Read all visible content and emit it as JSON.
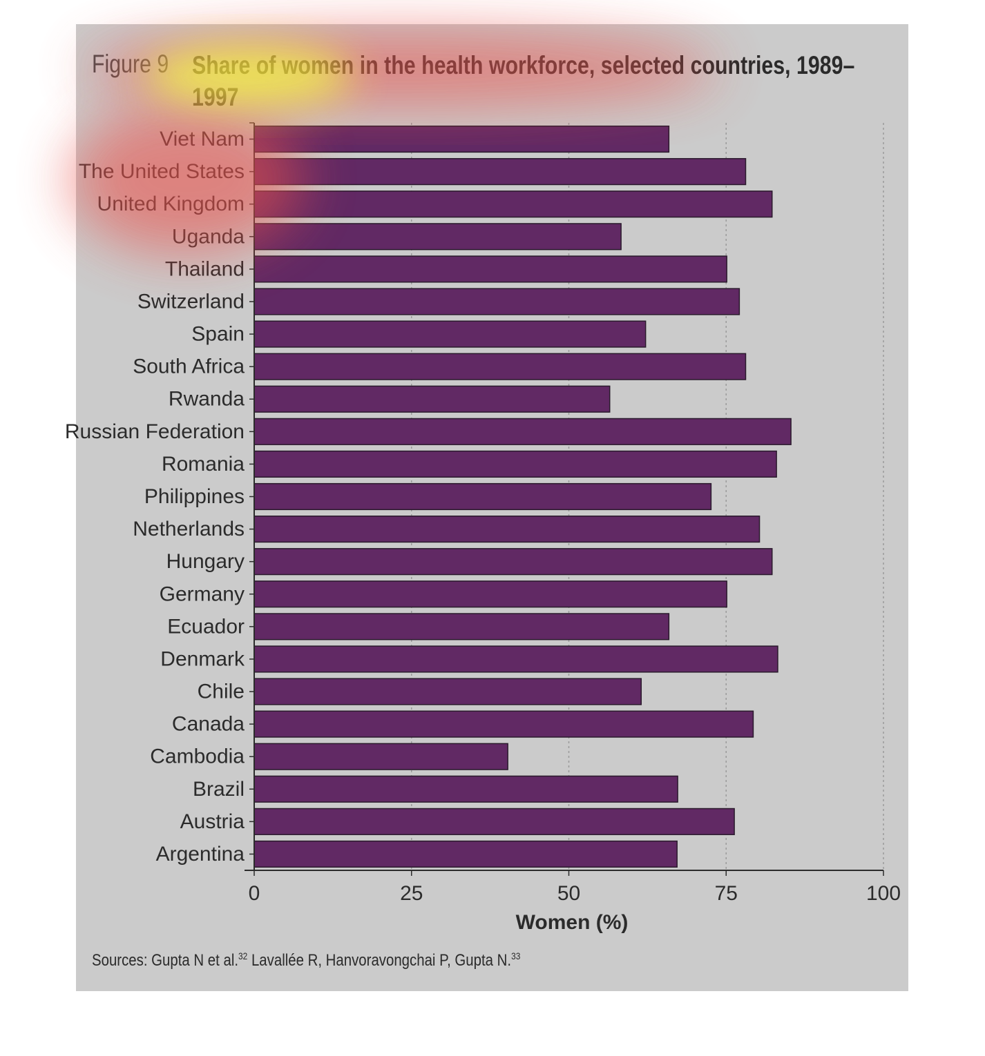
{
  "figure": {
    "label": "Figure 9",
    "title": "Share of women in the health workforce, selected countries, 1989–1997"
  },
  "sources": {
    "prefix": "Sources: Gupta N et al.",
    "ref1": "32",
    "middle": " Lavallée R, Hanvoravongchai P, Gupta N.",
    "ref2": "33"
  },
  "colors": {
    "bar": "#612964",
    "bar_edge": "#2a1a2c",
    "panel": "#cbcbcb",
    "grid": "#9a9a9a"
  },
  "chart_data": {
    "type": "bar",
    "orientation": "horizontal",
    "title": "Share of women in the health workforce, selected countries, 1989–1997",
    "xlabel": "Women (%)",
    "ylabel": "",
    "xlim": [
      0,
      100
    ],
    "xticks": [
      0,
      25,
      50,
      75,
      100
    ],
    "grid": "vertical dotted",
    "categories": [
      "Viet Nam",
      "The United States",
      "United Kingdom",
      "Uganda",
      "Thailand",
      "Switzerland",
      "Spain",
      "South Africa",
      "Rwanda",
      "Russian Federation",
      "Romania",
      "Philippines",
      "Netherlands",
      "Hungary",
      "Germany",
      "Ecuador",
      "Denmark",
      "Chile",
      "Canada",
      "Cambodia",
      "Brazil",
      "Austria",
      "Argentina"
    ],
    "values": [
      65.9,
      78.1,
      82.3,
      58.3,
      75.1,
      77.1,
      62.2,
      78.1,
      56.5,
      85.3,
      83.0,
      72.6,
      80.3,
      82.3,
      75.1,
      65.9,
      83.2,
      61.5,
      79.3,
      40.3,
      67.3,
      76.3,
      67.2
    ]
  }
}
